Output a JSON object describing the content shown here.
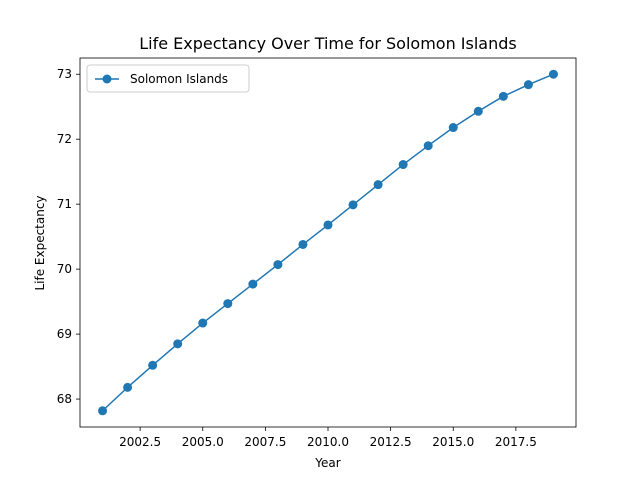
{
  "chart_data": {
    "type": "line",
    "title": "Life Expectancy Over Time for Solomon Islands",
    "xlabel": "Year",
    "ylabel": "Life Expectancy",
    "xlim": [
      2000.1,
      2019.9
    ],
    "ylim": [
      67.57,
      73.25
    ],
    "xticks": [
      2002.5,
      2005.0,
      2007.5,
      2010.0,
      2012.5,
      2015.0,
      2017.5
    ],
    "xtick_labels": [
      "2002.5",
      "2005.0",
      "2007.5",
      "2010.0",
      "2012.5",
      "2015.0",
      "2017.5"
    ],
    "yticks": [
      68,
      69,
      70,
      71,
      72,
      73
    ],
    "ytick_labels": [
      "68",
      "69",
      "70",
      "71",
      "72",
      "73"
    ],
    "grid": false,
    "legend_position": "upper-left",
    "series": [
      {
        "name": "Solomon Islands",
        "color": "#1f77b4",
        "marker": "circle",
        "x": [
          2001,
          2002,
          2003,
          2004,
          2005,
          2006,
          2007,
          2008,
          2009,
          2010,
          2011,
          2012,
          2013,
          2014,
          2015,
          2016,
          2017,
          2018,
          2019
        ],
        "y": [
          67.82,
          68.18,
          68.52,
          68.85,
          69.17,
          69.47,
          69.77,
          70.07,
          70.38,
          70.68,
          70.99,
          71.3,
          71.61,
          71.9,
          72.18,
          72.43,
          72.66,
          72.84,
          73.0
        ]
      }
    ]
  }
}
